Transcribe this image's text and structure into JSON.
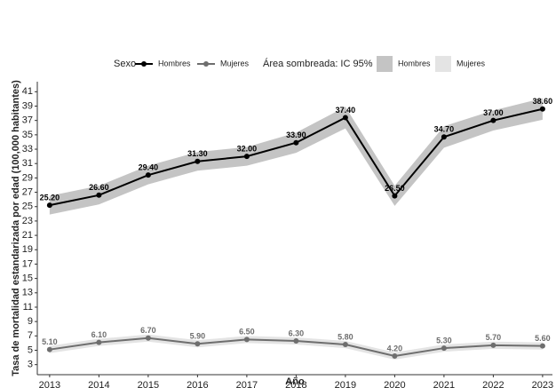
{
  "chart_data": {
    "type": "line",
    "legend_title": "Sexo",
    "band_legend_title": "Área sombreada: IC 95%",
    "x_label": "Año",
    "y_label": "Tasa de mortalidad estandarizada por edad (100,000 habitantes)",
    "x": [
      2013,
      2014,
      2015,
      2016,
      2017,
      2018,
      2019,
      2020,
      2021,
      2022,
      2023
    ],
    "xlim": [
      2012.75,
      2023.2
    ],
    "xticks": [
      2013,
      2014,
      2015,
      2016,
      2017,
      2018,
      2019,
      2020,
      2021,
      2022,
      2023
    ],
    "ylim": [
      1.6,
      42.4
    ],
    "yticks": [
      3,
      5,
      7,
      9,
      11,
      13,
      15,
      17,
      19,
      21,
      23,
      25,
      27,
      29,
      31,
      33,
      35,
      37,
      39,
      41
    ],
    "grid": false,
    "series": [
      {
        "name": "Hombres",
        "color": "#000000",
        "band_color": "#c4c4c4",
        "values": [
          25.2,
          26.6,
          29.4,
          31.3,
          32.0,
          33.9,
          37.4,
          26.5,
          34.7,
          37.0,
          38.6
        ],
        "value_labels": [
          "25.20",
          "26.60",
          "29.40",
          "31.30",
          "32.00",
          "33.90",
          "37.40",
          "26.50",
          "34.70",
          "37.00",
          "38.60"
        ],
        "ci_lower": [
          23.9,
          25.3,
          28.1,
          30.0,
          30.7,
          32.5,
          35.9,
          25.1,
          33.2,
          35.6,
          37.1
        ],
        "ci_upper": [
          26.5,
          27.9,
          30.7,
          32.6,
          33.3,
          35.3,
          38.9,
          27.9,
          36.2,
          38.4,
          40.1
        ]
      },
      {
        "name": "Mujeres",
        "color": "#6e6e6e",
        "band_color": "#e4e4e4",
        "values": [
          5.1,
          6.1,
          6.7,
          5.9,
          6.5,
          6.3,
          5.8,
          4.2,
          5.3,
          5.7,
          5.6
        ],
        "value_labels": [
          "5.10",
          "6.10",
          "6.70",
          "5.90",
          "6.50",
          "6.30",
          "5.80",
          "4.20",
          "5.30",
          "5.70",
          "5.60"
        ],
        "ci_lower": [
          4.6,
          5.6,
          6.2,
          5.4,
          6.0,
          5.8,
          5.3,
          3.7,
          4.8,
          5.2,
          5.1
        ],
        "ci_upper": [
          5.6,
          6.6,
          7.2,
          6.4,
          7.0,
          6.8,
          6.3,
          4.7,
          5.8,
          6.2,
          6.1
        ]
      }
    ]
  }
}
